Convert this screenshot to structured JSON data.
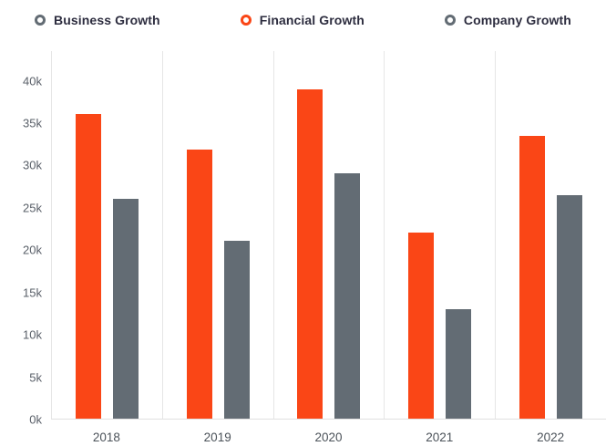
{
  "chart_data": {
    "type": "bar",
    "title": "",
    "xlabel": "",
    "ylabel": "",
    "legend_position": "top",
    "grid": "vertical-only",
    "categories": [
      "2018",
      "2019",
      "2020",
      "2021",
      "2022"
    ],
    "legend": [
      {
        "label": "Business Growth",
        "color": "#636c74"
      },
      {
        "label": "Financial Growth",
        "color": "#fa4616"
      },
      {
        "label": "Company Growth",
        "color": "#636c74"
      }
    ],
    "series": [
      {
        "name": "Financial Growth",
        "color": "#fa4616",
        "values": [
          36000,
          31800,
          39000,
          22000,
          33500
        ]
      },
      {
        "name": "Company Growth",
        "color": "#636c74",
        "values": [
          26000,
          21000,
          29000,
          13000,
          26500
        ]
      }
    ],
    "y_ticks": [
      {
        "label": "0k",
        "value": 0
      },
      {
        "label": "5k",
        "value": 5000
      },
      {
        "label": "10k",
        "value": 10000
      },
      {
        "label": "15k",
        "value": 15000
      },
      {
        "label": "20k",
        "value": 20000
      },
      {
        "label": "25k",
        "value": 25000
      },
      {
        "label": "30k",
        "value": 30000
      },
      {
        "label": "35k",
        "value": 35000
      },
      {
        "label": "40k",
        "value": 40000
      }
    ],
    "ylim": [
      0,
      43500
    ],
    "tick_interval": 5000
  }
}
